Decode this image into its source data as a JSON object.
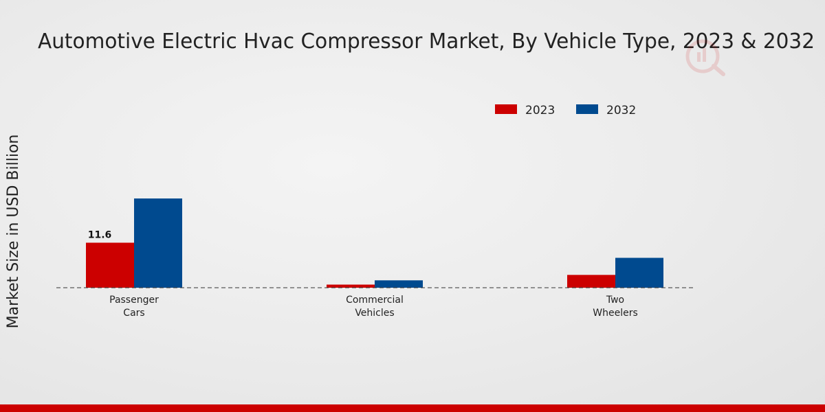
{
  "chart_data": {
    "type": "bar",
    "title": "Automotive Electric Hvac Compressor Market, By Vehicle Type, 2023 & 2032",
    "xlabel": "",
    "ylabel": "Market Size in USD Billion",
    "categories": [
      [
        "Passenger",
        "Cars"
      ],
      [
        "Commercial",
        "Vehicles"
      ],
      [
        "Two",
        "Wheelers"
      ]
    ],
    "series": [
      {
        "name": "2023",
        "color": "#cc0000",
        "values": [
          11.6,
          0.8,
          3.3
        ]
      },
      {
        "name": "2032",
        "color": "#004a8f",
        "values": [
          23.0,
          1.9,
          7.7
        ]
      }
    ],
    "data_labels": [
      {
        "series": 0,
        "category": 0,
        "text": "11.6"
      }
    ],
    "ylim": [
      0,
      30
    ],
    "legend_position": "top-right",
    "grid": false,
    "baseline_style": "dashed"
  },
  "colors": {
    "bottom_bar": "#cc0000",
    "text": "#222222"
  }
}
